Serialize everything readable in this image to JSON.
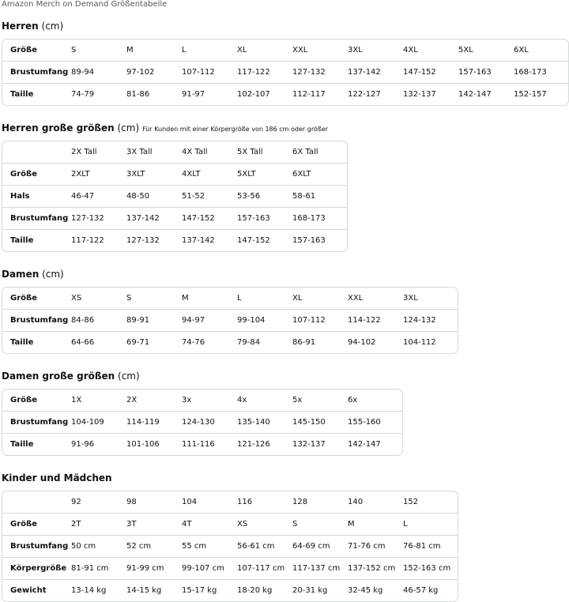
{
  "title": "Amazon Merch on Demand Größentabelle",
  "sections": [
    {
      "heading": "Herren",
      "unit": "(cm)",
      "rows": [
        [
          "Größe",
          "S",
          "M",
          "L",
          "XL",
          "XXL",
          "3XL",
          "4XL",
          "5XL",
          "6XL"
        ],
        [
          "Brustumfang",
          "89-94",
          "97-102",
          "107-112",
          "117-122",
          "127-132",
          "137-142",
          "147-152",
          "157-163",
          "168-173"
        ],
        [
          "Taille",
          "74-79",
          "81-86",
          "91-97",
          "102-107",
          "112-117",
          "122-127",
          "132-137",
          "142-147",
          "152-157"
        ]
      ]
    },
    {
      "heading": "Herren große größen",
      "unit": "(cm)",
      "note": "Für Kunden mit einer Körpergröße von 186 cm oder größer",
      "rows": [
        [
          null,
          "2X Tall",
          "3X Tall",
          "4X Tall",
          "5X Tall",
          "6X Tall"
        ],
        [
          "Größe",
          "2XLT",
          "3XLT",
          "4XLT",
          "5XLT",
          "6XLT"
        ],
        [
          "Hals",
          "46-47",
          "48-50",
          "51-52",
          "53-56",
          "58-61"
        ],
        [
          "Brustumfang",
          "127-132",
          "137-142",
          "147-152",
          "157-163",
          "168-173"
        ],
        [
          "Taille",
          "117-122",
          "127-132",
          "137-142",
          "147-152",
          "157-163"
        ]
      ]
    },
    {
      "heading": "Damen",
      "unit": "(cm)",
      "rows": [
        [
          "Größe",
          "XS",
          "S",
          "M",
          "L",
          "XL",
          "XXL",
          "3XL"
        ],
        [
          "Brustumfang",
          "84-86",
          "89-91",
          "94-97",
          "99-104",
          "107-112",
          "114-122",
          "124-132"
        ],
        [
          "Taille",
          "64-66",
          "69-71",
          "74-76",
          "79-84",
          "86-91",
          "94-102",
          "104-112"
        ]
      ]
    },
    {
      "heading": "Damen große größen",
      "unit": "(cm)",
      "rows": [
        [
          "Größe",
          "1X",
          "2X",
          "3x",
          "4x",
          "5x",
          "6x"
        ],
        [
          "Brustumfang",
          "104-109",
          "114-119",
          "124-130",
          "135-140",
          "145-150",
          "155-160"
        ],
        [
          "Taille",
          "91-96",
          "101-106",
          "111-116",
          "121-126",
          "132-137",
          "142-147"
        ]
      ]
    },
    {
      "heading": "Kinder und Mädchen",
      "rows": [
        [
          null,
          "92",
          "98",
          "104",
          "116",
          "128",
          "140",
          "152"
        ],
        [
          "Größe",
          "2T",
          "3T",
          "4T",
          "XS",
          "S",
          "M",
          "L"
        ],
        [
          "Brustumfang",
          "50 cm",
          "52 cm",
          "55 cm",
          "56-61 cm",
          "64-69 cm",
          "71-76 cm",
          "76-81 cm"
        ],
        [
          "Körpergröße",
          "81-91 cm",
          "91-99 cm",
          "99-107 cm",
          "107-117 cm",
          "117-137 cm",
          "137-152 cm",
          "152-163 cm"
        ],
        [
          "Gewicht",
          "13-14 kg",
          "14-15 kg",
          "15-17 kg",
          "18-20 kg",
          "20-31 kg",
          "32-45 kg",
          "46-57 kg"
        ]
      ]
    }
  ]
}
